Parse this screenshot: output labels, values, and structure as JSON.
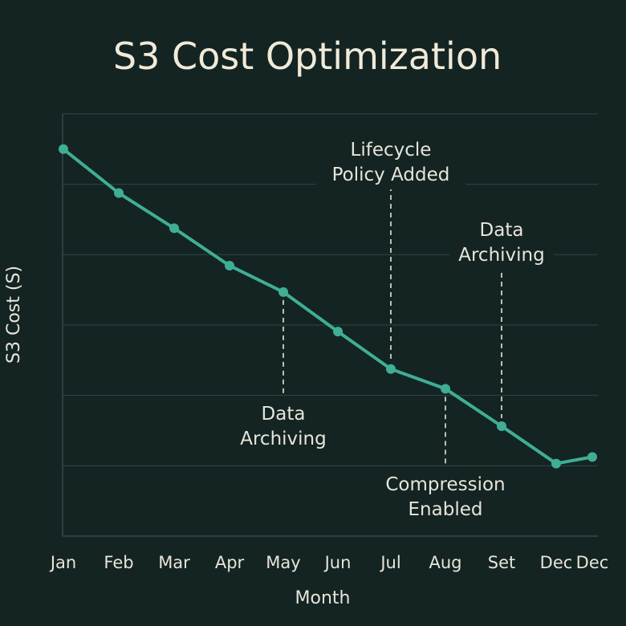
{
  "chart_data": {
    "type": "line",
    "title": "S3 Cost Optimization",
    "xlabel": "Month",
    "ylabel": "S3 Cost (S)",
    "categories": [
      "Jan",
      "Feb",
      "Mar",
      "Apr",
      "May",
      "Jun",
      "Jul",
      "Aug",
      "Set",
      "Dec",
      "Dec"
    ],
    "series": [
      {
        "values": [
          88,
          78,
          70,
          61.5,
          55.5,
          46.5,
          38,
          33.5,
          25,
          16.5,
          18
        ],
        "color": "#3fae95"
      }
    ],
    "ylim": [
      0,
      100
    ],
    "y_gridlines": [
      16,
      32,
      48,
      64,
      80,
      96
    ],
    "y_tick_labels_shown": false,
    "grid": "horizontal",
    "annotations": [
      {
        "label": "Lifecycle Policy Added",
        "lines": [
          "Lifecycle",
          "Policy Added"
        ],
        "x_index": 6,
        "position": "above"
      },
      {
        "label": "Data Archiving",
        "lines": [
          "Data",
          "Archiving"
        ],
        "x_index": 8,
        "position": "above"
      },
      {
        "label": "Data Archiving",
        "lines": [
          "Data",
          "Archiving"
        ],
        "x_index": 4,
        "position": "below"
      },
      {
        "label": "Compression Enabled",
        "lines": [
          "Compression",
          "Enabled"
        ],
        "x_index": 7,
        "position": "below"
      }
    ]
  }
}
